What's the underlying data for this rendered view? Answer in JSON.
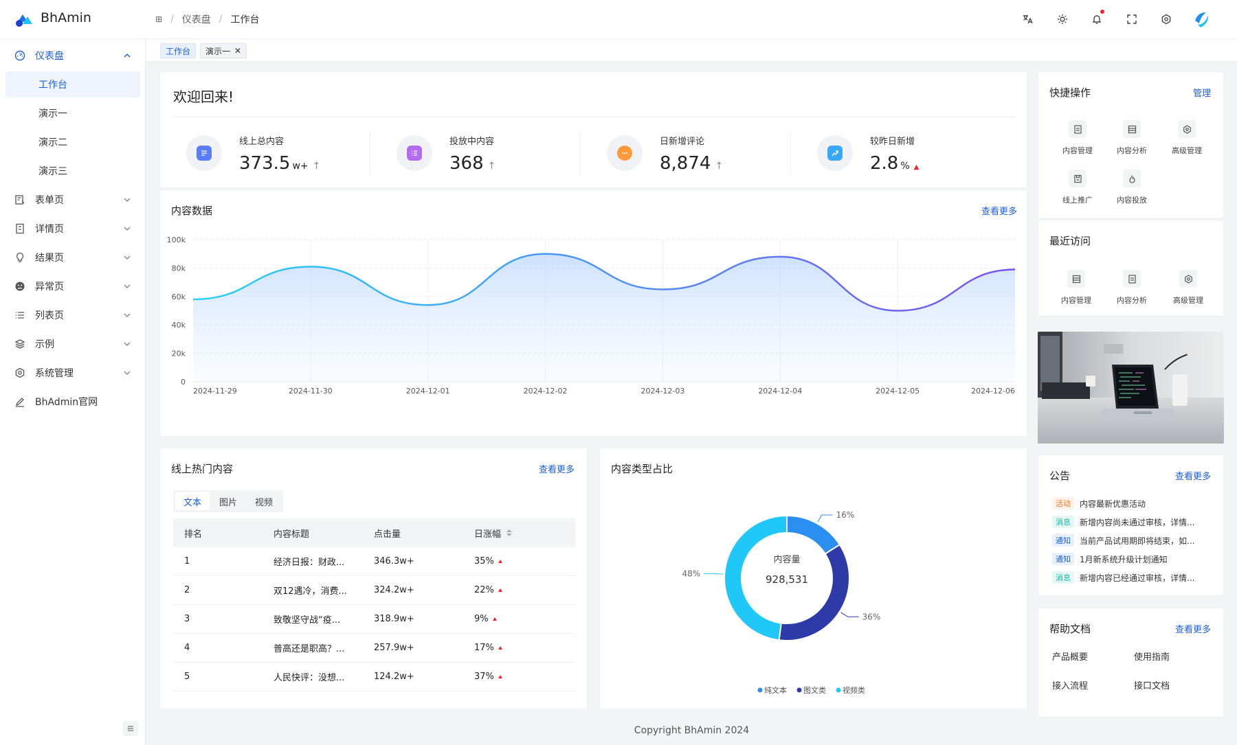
{
  "app": {
    "name": "BhAmin"
  },
  "breadcrumb": [
    "仪表盘",
    "工作台"
  ],
  "sidebar": {
    "items": [
      {
        "label": "仪表盘",
        "icon": "dashboard-icon"
      },
      {
        "label": "工作台"
      },
      {
        "label": "演示一"
      },
      {
        "label": "演示二"
      },
      {
        "label": "演示三"
      },
      {
        "label": "表单页",
        "icon": "form-icon"
      },
      {
        "label": "详情页",
        "icon": "detail-icon"
      },
      {
        "label": "结果页",
        "icon": "bulb-icon"
      },
      {
        "label": "异常页",
        "icon": "error-face-icon"
      },
      {
        "label": "列表页",
        "icon": "list-icon"
      },
      {
        "label": "示例",
        "icon": "layers-icon"
      },
      {
        "label": "系统管理",
        "icon": "gear-icon"
      },
      {
        "label": "BhAdmin官网",
        "icon": "pen-icon"
      }
    ]
  },
  "tabs": {
    "workbench": "工作台",
    "demo1": "演示一"
  },
  "welcome": {
    "title": "欢迎回来!",
    "stats": [
      {
        "label": "线上总内容",
        "value": "373.5",
        "unit": "w+",
        "trend": "↑",
        "color": "#5b7cf7"
      },
      {
        "label": "投放中内容",
        "value": "368",
        "unit": "",
        "trend": "↑",
        "color": "#b26cf0"
      },
      {
        "label": "日新增评论",
        "value": "8,874",
        "unit": "",
        "trend": "↑",
        "color": "#ff9a3c"
      },
      {
        "label": "较昨日新增",
        "value": "2.8",
        "unit": "%",
        "trend": "▲",
        "color": "#3aa8f5"
      }
    ]
  },
  "content_card": {
    "title": "内容数据",
    "more": "查看更多"
  },
  "chart_data": [
    {
      "type": "area",
      "title": "内容数据",
      "x": [
        "2024-11-29",
        "2024-11-30",
        "2024-12-01",
        "2024-12-02",
        "2024-12-03",
        "2024-12-04",
        "2024-12-05",
        "2024-12-06"
      ],
      "series": [
        {
          "values": [
            58000,
            81000,
            54000,
            90000,
            65000,
            88000,
            50000,
            79000
          ]
        }
      ],
      "yticks": [
        "0",
        "20k",
        "40k",
        "60k",
        "80k",
        "100k"
      ],
      "ylim": [
        0,
        100000
      ],
      "grid": true,
      "gradient": [
        "#22d3f5",
        "#7b4ff0"
      ]
    },
    {
      "type": "pie",
      "title": "内容类型占比",
      "center_label": "内容量",
      "center_value": "928,531",
      "slices": [
        {
          "name": "纯文本",
          "value": 16,
          "label": "16%",
          "color": "#2b8ff2"
        },
        {
          "name": "图文类",
          "value": 36,
          "label": "36%",
          "color": "#2e3aa8"
        },
        {
          "name": "视频类",
          "value": 48,
          "label": "48%",
          "color": "#20c8f8"
        }
      ],
      "legend": "bottom"
    }
  ],
  "hot": {
    "title": "线上热门内容",
    "more": "查看更多",
    "seg": [
      "文本",
      "图片",
      "视频"
    ],
    "columns": [
      "排名",
      "内容标题",
      "点击量",
      "日涨幅"
    ],
    "rows": [
      [
        "1",
        "经济日报：财政...",
        "346.3w+",
        "35%"
      ],
      [
        "2",
        "双12遇冷，消费...",
        "324.2w+",
        "22%"
      ],
      [
        "3",
        "致敬坚守战“疫...",
        "318.9w+",
        "9%"
      ],
      [
        "4",
        "普高还是职高？...",
        "257.9w+",
        "17%"
      ],
      [
        "5",
        "人民快评：没想...",
        "124.2w+",
        "37%"
      ]
    ]
  },
  "type_card": {
    "title": "内容类型占比"
  },
  "quick": {
    "title": "快捷操作",
    "manage": "管理",
    "items": [
      {
        "label": "内容管理",
        "icon": "doc-icon"
      },
      {
        "label": "内容分析",
        "icon": "table-icon"
      },
      {
        "label": "高级管理",
        "icon": "gear-icon"
      },
      {
        "label": "线上推广",
        "icon": "save-icon"
      },
      {
        "label": "内容投放",
        "icon": "fire-icon"
      }
    ]
  },
  "recent": {
    "title": "最近访问",
    "items": [
      {
        "label": "内容管理",
        "icon": "table-icon"
      },
      {
        "label": "内容分析",
        "icon": "doc-icon"
      },
      {
        "label": "高级管理",
        "icon": "gear-icon"
      }
    ]
  },
  "notice": {
    "title": "公告",
    "more": "查看更多",
    "items": [
      {
        "tag": "活动",
        "text": "内容最新优惠活动",
        "tag_color": "#f07a2a",
        "tag_bg": "#fff2e8"
      },
      {
        "tag": "消息",
        "text": "新增内容尚未通过审核，详情...",
        "tag_color": "#13b8a8",
        "tag_bg": "#e6f8f6"
      },
      {
        "tag": "通知",
        "text": "当前产品试用期即将结束，如...",
        "tag_color": "#1d5fd7",
        "tag_bg": "#e8f0fe"
      },
      {
        "tag": "通知",
        "text": "1月新系统升级计划通知",
        "tag_color": "#1d5fd7",
        "tag_bg": "#e8f0fe"
      },
      {
        "tag": "消息",
        "text": "新增内容已经通过审核，详情...",
        "tag_color": "#13b8a8",
        "tag_bg": "#e6f8f6"
      }
    ]
  },
  "help": {
    "title": "帮助文档",
    "more": "查看更多",
    "links": [
      "产品概要",
      "使用指南",
      "接入流程",
      "接口文档"
    ]
  },
  "footer": "Copyright  BhAmin  2024"
}
